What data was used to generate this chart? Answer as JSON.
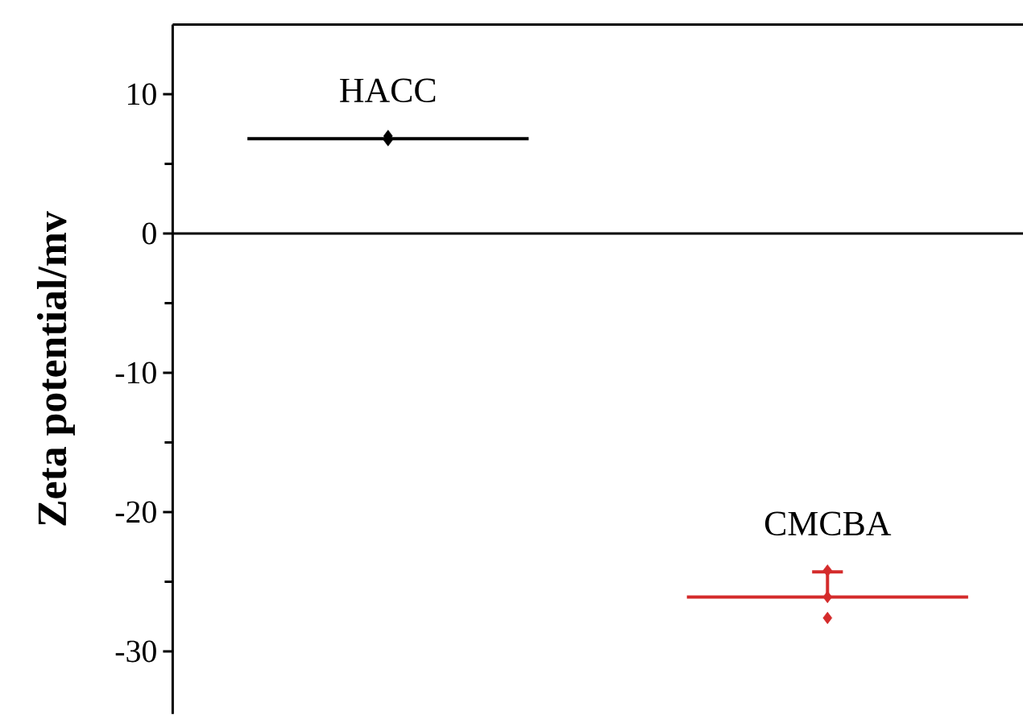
{
  "chart_data": {
    "type": "box",
    "ylabel": "Zeta potential/mv",
    "categories": [
      "HACC",
      "CMCBA"
    ],
    "ylim": [
      -34.5,
      15
    ],
    "yticks": [
      -30,
      {
        "value": -25,
        "label": null
      },
      -20,
      {
        "value": -15,
        "label": null
      },
      -10,
      {
        "value": -5,
        "label": null
      },
      0,
      {
        "value": 5,
        "label": null
      },
      10
    ],
    "tick_labels": "y",
    "series": [
      {
        "colors": [
          "#000000",
          "#d42b2b"
        ],
        "boxes": [
          {
            "low": 6.8,
            "q1": 6.8,
            "median": 6.8,
            "q3": 6.8,
            "high": 6.8
          },
          {
            "low": -26.1,
            "q1": -26.1,
            "median": -26.1,
            "q3": -26.1,
            "high": -24.3
          }
        ]
      },
      {
        "type": "scatter",
        "color": "#000000",
        "marker": "diamond",
        "x": [
          "HACC",
          "HACC"
        ],
        "values": [
          7.0,
          6.7
        ]
      },
      {
        "type": "scatter",
        "color": "#d42b2b",
        "marker": "diamond",
        "x": [
          "CMCBA",
          "CMCBA",
          "CMCBA"
        ],
        "values": [
          -24.2,
          -26.1,
          -27.6
        ]
      }
    ],
    "ref_lines": [
      {
        "axis": "y",
        "value": 0,
        "color": "#000000"
      }
    ]
  }
}
